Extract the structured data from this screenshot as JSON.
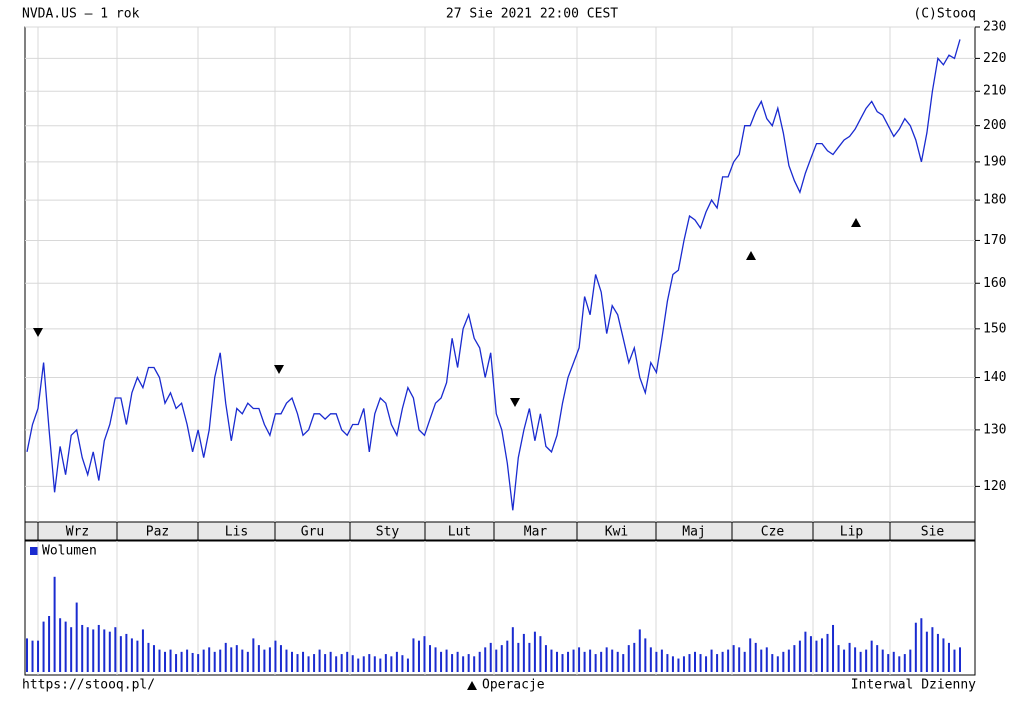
{
  "chart_data": {
    "type": "line",
    "title": "NVDA.US – 1 rok",
    "subtitle": "27 Sie 2021 22:00 CEST",
    "source": "(C)Stooq",
    "footer_left": "https://stooq.pl/",
    "footer_center": "Operacje",
    "footer_right": "Interwal Dzienny",
    "months": [
      "Wrz",
      "Paz",
      "Lis",
      "Gru",
      "Sty",
      "Lut",
      "Mar",
      "Kwi",
      "Maj",
      "Cze",
      "Lip",
      "Sie"
    ],
    "color": "#1a2bd0",
    "log_scale": true,
    "grid": true,
    "ylim": [
      114.1,
      230
    ],
    "yticks": [
      120,
      130,
      140,
      150,
      160,
      170,
      180,
      190,
      200,
      210,
      220,
      230
    ],
    "values": [
      126,
      131,
      134,
      143,
      130,
      119,
      127,
      122,
      129,
      130,
      125,
      122,
      126,
      121,
      128,
      131,
      136,
      136,
      131,
      137,
      140,
      138,
      142,
      142,
      140,
      135,
      137,
      134,
      135,
      131,
      126,
      130,
      125,
      130,
      140,
      145,
      135,
      128,
      134,
      133,
      135,
      134,
      134,
      131,
      129,
      133,
      133,
      135,
      136,
      133,
      129,
      130,
      133,
      133,
      132,
      133,
      133,
      130,
      129,
      131,
      131,
      134,
      126,
      133,
      136,
      135,
      131,
      129,
      134,
      138,
      136,
      130,
      129,
      132,
      135,
      136,
      139,
      148,
      142,
      150,
      153,
      148,
      146,
      140,
      145,
      133,
      130,
      124,
      116,
      125,
      130,
      134,
      128,
      133,
      127,
      126,
      129,
      135,
      140,
      143,
      146,
      157,
      153,
      162,
      158,
      149,
      155,
      153,
      148,
      143,
      146,
      140,
      137,
      143,
      141,
      148,
      156,
      162,
      163,
      170,
      176,
      175,
      173,
      177,
      180,
      178,
      186,
      186,
      190,
      192,
      200,
      200,
      204,
      207,
      202,
      200,
      205,
      198,
      189,
      185,
      182,
      187,
      191,
      195,
      195,
      193,
      192,
      194,
      196,
      197,
      199,
      202,
      205,
      207,
      204,
      203,
      200,
      197,
      199,
      202,
      200,
      196,
      190,
      198,
      210,
      220,
      218,
      221,
      220,
      226
    ],
    "volume": {
      "name": "Wolumen",
      "color": "#1a2bd0",
      "ylim": [
        0,
        100
      ],
      "values": [
        30,
        28,
        28,
        45,
        50,
        85,
        48,
        45,
        40,
        62,
        42,
        40,
        38,
        42,
        38,
        36,
        40,
        32,
        34,
        30,
        28,
        38,
        26,
        24,
        20,
        18,
        20,
        16,
        18,
        20,
        17,
        16,
        20,
        22,
        18,
        20,
        26,
        22,
        24,
        20,
        18,
        30,
        24,
        20,
        22,
        28,
        24,
        20,
        18,
        16,
        18,
        14,
        16,
        20,
        16,
        18,
        14,
        16,
        18,
        15,
        12,
        14,
        16,
        14,
        12,
        16,
        14,
        18,
        15,
        12,
        30,
        28,
        32,
        24,
        22,
        18,
        20,
        16,
        18,
        14,
        16,
        14,
        18,
        22,
        26,
        20,
        24,
        28,
        40,
        26,
        34,
        26,
        36,
        32,
        24,
        20,
        18,
        16,
        18,
        20,
        22,
        18,
        20,
        16,
        18,
        22,
        20,
        18,
        16,
        24,
        26,
        38,
        30,
        22,
        18,
        20,
        16,
        14,
        12,
        14,
        16,
        18,
        16,
        14,
        20,
        16,
        18,
        20,
        24,
        22,
        18,
        30,
        26,
        20,
        22,
        16,
        14,
        18,
        20,
        24,
        28,
        36,
        32,
        28,
        30,
        34,
        42,
        24,
        20,
        26,
        22,
        18,
        20,
        28,
        24,
        20,
        16,
        18,
        14,
        16,
        20,
        44,
        48,
        36,
        40,
        34,
        30,
        26,
        20,
        22
      ]
    }
  }
}
